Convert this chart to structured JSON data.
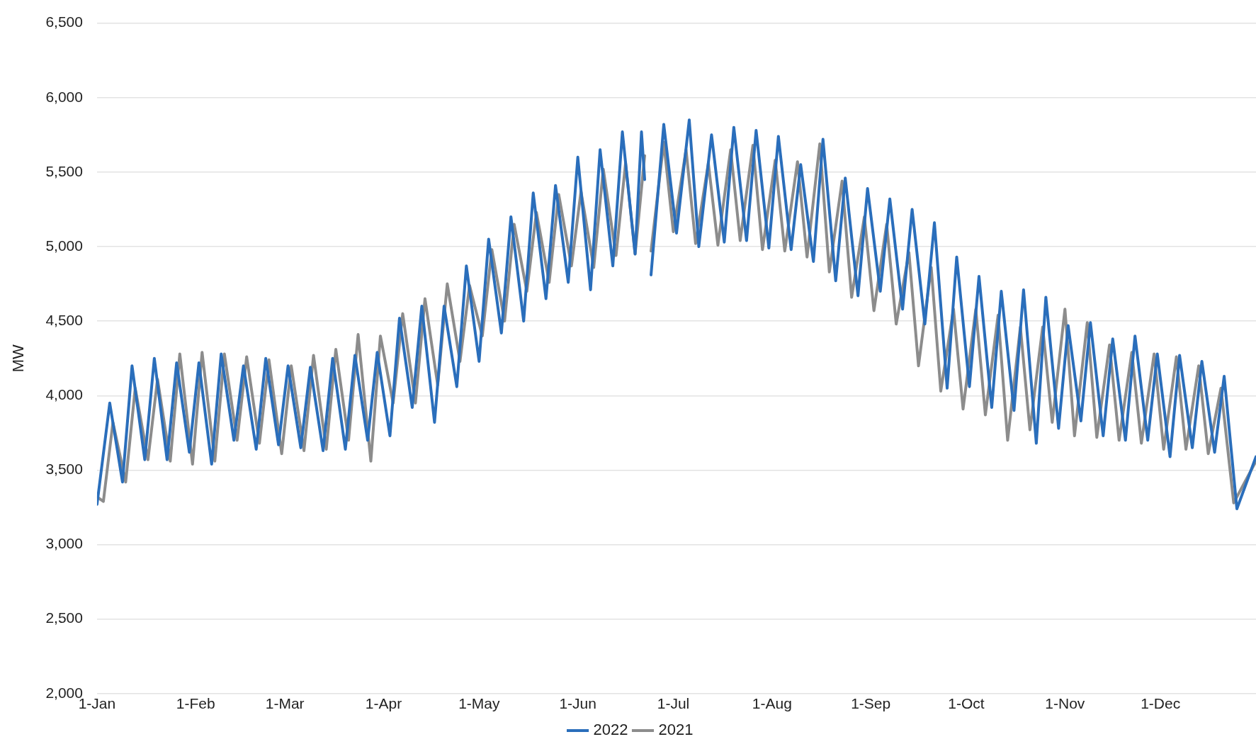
{
  "chart_data": {
    "type": "line",
    "ylabel": "MW",
    "xlim": [
      "--01-01",
      "--12-31"
    ],
    "xticks": [
      {
        "value": "--01-01",
        "label": "1-Jan"
      },
      {
        "value": "--02-01",
        "label": "1-Feb"
      },
      {
        "value": "--03-01",
        "label": "1-Mar"
      },
      {
        "value": "--04-01",
        "label": "1-Apr"
      },
      {
        "value": "--05-01",
        "label": "1-May"
      },
      {
        "value": "--06-01",
        "label": "1-Jun"
      },
      {
        "value": "--07-01",
        "label": "1-Jul"
      },
      {
        "value": "--08-01",
        "label": "1-Aug"
      },
      {
        "value": "--09-01",
        "label": "1-Sep"
      },
      {
        "value": "--10-01",
        "label": "1-Oct"
      },
      {
        "value": "--11-01",
        "label": "1-Nov"
      },
      {
        "value": "--12-01",
        "label": "1-Dec"
      }
    ],
    "ylim": [
      2000,
      6500
    ],
    "yticks": [
      {
        "value": 2000,
        "label": "2,000"
      },
      {
        "value": 2500,
        "label": "2,500"
      },
      {
        "value": 3000,
        "label": "3,000"
      },
      {
        "value": 3500,
        "label": "3,500"
      },
      {
        "value": 4000,
        "label": "4,000"
      },
      {
        "value": 4500,
        "label": "4,500"
      },
      {
        "value": 5000,
        "label": "5,000"
      },
      {
        "value": 5500,
        "label": "5,500"
      },
      {
        "value": 6000,
        "label": "6,000"
      },
      {
        "value": 6500,
        "label": "6,500"
      }
    ],
    "grid": "y",
    "legend": "bottom",
    "marker": "none",
    "line_style": "solid",
    "series": [
      {
        "name": "2022",
        "color": "#2a6ebb",
        "x": [
          "--01-01",
          "--01-05",
          "--01-09",
          "--01-12",
          "--01-16",
          "--01-19",
          "--01-23",
          "--01-26",
          "--01-30",
          "--02-02",
          "--02-06",
          "--02-09",
          "--02-13",
          "--02-16",
          "--02-20",
          "--02-23",
          "--02-27",
          "--03-02",
          "--03-06",
          "--03-09",
          "--03-13",
          "--03-16",
          "--03-20",
          "--03-23",
          "--03-27",
          "--03-30",
          "--04-03",
          "--04-06",
          "--04-10",
          "--04-13",
          "--04-17",
          "--04-20",
          "--04-24",
          "--04-27",
          "--05-01",
          "--05-04",
          "--05-08",
          "--05-11",
          "--05-15",
          "--05-18",
          "--05-22",
          "--05-25",
          "--05-29",
          "--06-01",
          "--06-05",
          "--06-08",
          "--06-12",
          "--06-15",
          "--06-19",
          "--06-21",
          "--06-22",
          "--06-23",
          "--06-24",
          "--06-28",
          "--07-02",
          "--07-06",
          "--07-09",
          "--07-13",
          "--07-17",
          "--07-20",
          "--07-24",
          "--07-27",
          "--07-31",
          "--08-03",
          "--08-07",
          "--08-10",
          "--08-14",
          "--08-17",
          "--08-21",
          "--08-24",
          "--08-28",
          "--08-31",
          "--09-04",
          "--09-07",
          "--09-11",
          "--09-14",
          "--09-18",
          "--09-21",
          "--09-25",
          "--09-28",
          "--10-02",
          "--10-05",
          "--10-09",
          "--10-12",
          "--10-16",
          "--10-19",
          "--10-23",
          "--10-26",
          "--10-30",
          "--11-02",
          "--11-06",
          "--11-09",
          "--11-13",
          "--11-16",
          "--11-20",
          "--11-23",
          "--11-27",
          "--11-30",
          "--12-04",
          "--12-07",
          "--12-11",
          "--12-14",
          "--12-18",
          "--12-21",
          "--12-25",
          "--12-31"
        ],
        "values": [
          3270,
          3950,
          3420,
          4200,
          3570,
          4250,
          3570,
          4220,
          3620,
          4220,
          3540,
          4280,
          3700,
          4200,
          3640,
          4250,
          3670,
          4200,
          3650,
          4190,
          3630,
          4250,
          3640,
          4270,
          3700,
          4290,
          3730,
          4520,
          3920,
          4600,
          3820,
          4600,
          4060,
          4870,
          4230,
          5050,
          4420,
          5200,
          4500,
          5360,
          4650,
          5410,
          4760,
          5600,
          4710,
          5650,
          4870,
          5770,
          4950,
          5770,
          5450,
          null,
          4810,
          5820,
          5090,
          5850,
          5000,
          5750,
          5030,
          5800,
          5040,
          5780,
          4990,
          5740,
          4980,
          5550,
          4900,
          5720,
          4770,
          5460,
          4670,
          5390,
          4700,
          5320,
          4580,
          5250,
          4480,
          5160,
          4050,
          4930,
          4060,
          4800,
          3920,
          4700,
          3900,
          4710,
          3680,
          4660,
          3780,
          4470,
          3830,
          4490,
          3730,
          4380,
          3700,
          4400,
          3700,
          4280,
          3590,
          4270,
          3650,
          4230,
          3620,
          4130,
          3240,
          3590
        ]
      },
      {
        "name": "2021",
        "color": "#8c8c8c",
        "x": [
          "--01-01",
          "--01-03",
          "--01-06",
          "--01-10",
          "--01-13",
          "--01-17",
          "--01-20",
          "--01-24",
          "--01-27",
          "--01-31",
          "--02-03",
          "--02-07",
          "--02-10",
          "--02-14",
          "--02-17",
          "--02-21",
          "--02-24",
          "--02-28",
          "--03-03",
          "--03-07",
          "--03-10",
          "--03-14",
          "--03-17",
          "--03-21",
          "--03-24",
          "--03-28",
          "--03-31",
          "--04-04",
          "--04-07",
          "--04-11",
          "--04-14",
          "--04-18",
          "--04-21",
          "--04-25",
          "--04-28",
          "--05-02",
          "--05-05",
          "--05-09",
          "--05-12",
          "--05-16",
          "--05-19",
          "--05-23",
          "--05-26",
          "--05-30",
          "--06-02",
          "--06-06",
          "--06-09",
          "--06-13",
          "--06-16",
          "--06-19",
          "--06-22",
          "--06-23",
          "--06-24",
          "--06-28",
          "--07-01",
          "--07-05",
          "--07-08",
          "--07-12",
          "--07-15",
          "--07-19",
          "--07-22",
          "--07-26",
          "--07-29",
          "--08-02",
          "--08-05",
          "--08-09",
          "--08-12",
          "--08-16",
          "--08-19",
          "--08-23",
          "--08-26",
          "--08-30",
          "--09-02",
          "--09-06",
          "--09-09",
          "--09-13",
          "--09-16",
          "--09-20",
          "--09-23",
          "--09-27",
          "--09-30",
          "--10-04",
          "--10-07",
          "--10-11",
          "--10-14",
          "--10-18",
          "--10-21",
          "--10-25",
          "--10-28",
          "--11-01",
          "--11-04",
          "--11-08",
          "--11-11",
          "--11-15",
          "--11-18",
          "--11-22",
          "--11-25",
          "--11-29",
          "--12-02",
          "--12-06",
          "--12-09",
          "--12-13",
          "--12-16",
          "--12-20",
          "--12-24",
          "--12-31"
        ],
        "values": [
          3320,
          3290,
          3820,
          3420,
          4050,
          3570,
          4110,
          3560,
          4280,
          3540,
          4290,
          3560,
          4280,
          3700,
          4260,
          3680,
          4240,
          3610,
          4200,
          3630,
          4270,
          3640,
          4310,
          3700,
          4410,
          3560,
          4400,
          3950,
          4550,
          3950,
          4650,
          4070,
          4750,
          4230,
          4740,
          4400,
          4980,
          4500,
          5150,
          4700,
          5230,
          4760,
          5350,
          4870,
          5370,
          4860,
          5520,
          4940,
          5560,
          4950,
          5610,
          null,
          4970,
          5700,
          5100,
          5650,
          5020,
          5560,
          5010,
          5650,
          5040,
          5680,
          4980,
          5580,
          4970,
          5570,
          4930,
          5690,
          4830,
          5440,
          4660,
          5200,
          4570,
          5150,
          4480,
          4960,
          4200,
          4860,
          4030,
          4580,
          3910,
          4580,
          3870,
          4540,
          3700,
          4460,
          3770,
          4460,
          3820,
          4580,
          3730,
          4490,
          3720,
          4340,
          3700,
          4290,
          3680,
          4280,
          3640,
          4260,
          3640,
          4200,
          3610,
          4050,
          3280,
          3560
        ]
      }
    ]
  }
}
